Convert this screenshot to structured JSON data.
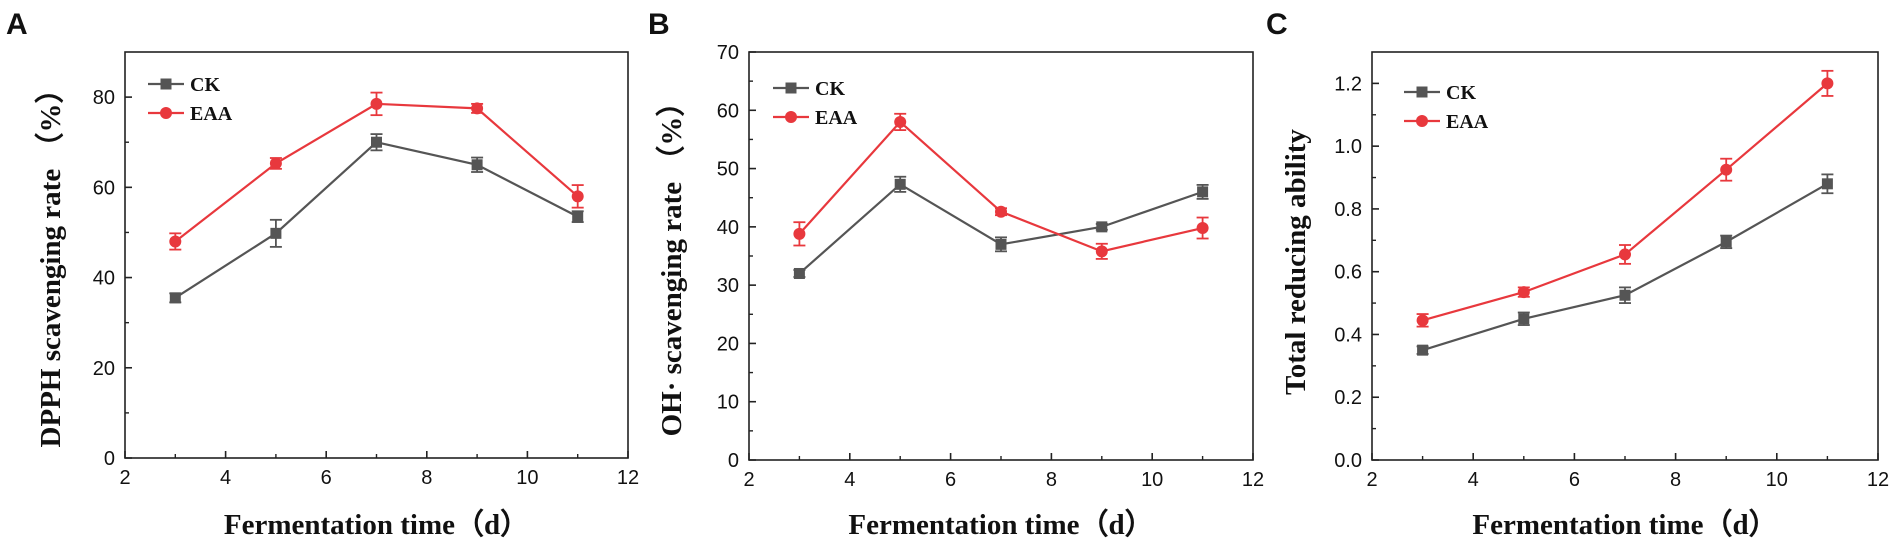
{
  "figure": {
    "panels": [
      "A",
      "B",
      "C"
    ]
  },
  "chart_data": [
    {
      "panel": "A",
      "type": "line",
      "xlabel": "Fermentation time（d）",
      "ylabel": "DPPH scavenging rate （%）",
      "xlim": [
        2,
        12
      ],
      "ylim": [
        0,
        90
      ],
      "xticks": [
        2,
        4,
        6,
        8,
        10,
        12
      ],
      "yticks": [
        0,
        20,
        40,
        60,
        80
      ],
      "x": [
        3,
        5,
        7,
        9,
        11
      ],
      "legend_position": "top-left",
      "series": [
        {
          "name": "CK",
          "color": "#555555",
          "marker": "square",
          "values": [
            35.5,
            49.8,
            70.0,
            65.0,
            53.5
          ],
          "errors": [
            1.0,
            3.0,
            1.8,
            1.6,
            1.2
          ]
        },
        {
          "name": "EAA",
          "color": "#e8383d",
          "marker": "circle",
          "values": [
            48.0,
            65.3,
            78.5,
            77.5,
            58.0
          ],
          "errors": [
            1.8,
            1.2,
            2.5,
            1.0,
            2.5
          ]
        }
      ]
    },
    {
      "panel": "B",
      "type": "line",
      "xlabel": "Fermentation time（d）",
      "ylabel": "OH· scavenging rate （%）",
      "xlim": [
        2,
        12
      ],
      "ylim": [
        0,
        70
      ],
      "xticks": [
        2,
        4,
        6,
        8,
        10,
        12
      ],
      "yticks": [
        0,
        10,
        20,
        30,
        40,
        50,
        60,
        70
      ],
      "x": [
        3,
        5,
        7,
        9,
        11
      ],
      "legend_position": "top-left",
      "series": [
        {
          "name": "CK",
          "color": "#555555",
          "marker": "square",
          "values": [
            32.0,
            47.3,
            37.0,
            40.0,
            46.0
          ],
          "errors": [
            0.6,
            1.3,
            1.2,
            0.5,
            1.2
          ]
        },
        {
          "name": "EAA",
          "color": "#e8383d",
          "marker": "circle",
          "values": [
            38.8,
            58.0,
            42.6,
            35.8,
            39.8
          ],
          "errors": [
            2.0,
            1.4,
            0.6,
            1.3,
            1.8
          ]
        }
      ]
    },
    {
      "panel": "C",
      "type": "line",
      "xlabel": "Fermentation time（d）",
      "ylabel": "Total reducing ability",
      "xlim": [
        2,
        12
      ],
      "ylim": [
        0,
        1.3
      ],
      "xticks": [
        2,
        4,
        6,
        8,
        10,
        12
      ],
      "yticks": [
        0.0,
        0.2,
        0.4,
        0.6,
        0.8,
        1.0,
        1.2
      ],
      "ytick_labels": [
        "0.0",
        "0.2",
        "0.4",
        "0.6",
        "0.8",
        "1.0",
        "1.2"
      ],
      "x": [
        3,
        5,
        7,
        9,
        11
      ],
      "legend_position": "top-left",
      "series": [
        {
          "name": "CK",
          "color": "#555555",
          "marker": "square",
          "values": [
            0.35,
            0.45,
            0.525,
            0.695,
            0.88
          ],
          "errors": [
            0.012,
            0.02,
            0.025,
            0.02,
            0.03
          ]
        },
        {
          "name": "EAA",
          "color": "#e8383d",
          "marker": "circle",
          "values": [
            0.445,
            0.535,
            0.655,
            0.925,
            1.2
          ],
          "errors": [
            0.02,
            0.015,
            0.03,
            0.035,
            0.04
          ]
        }
      ]
    }
  ]
}
